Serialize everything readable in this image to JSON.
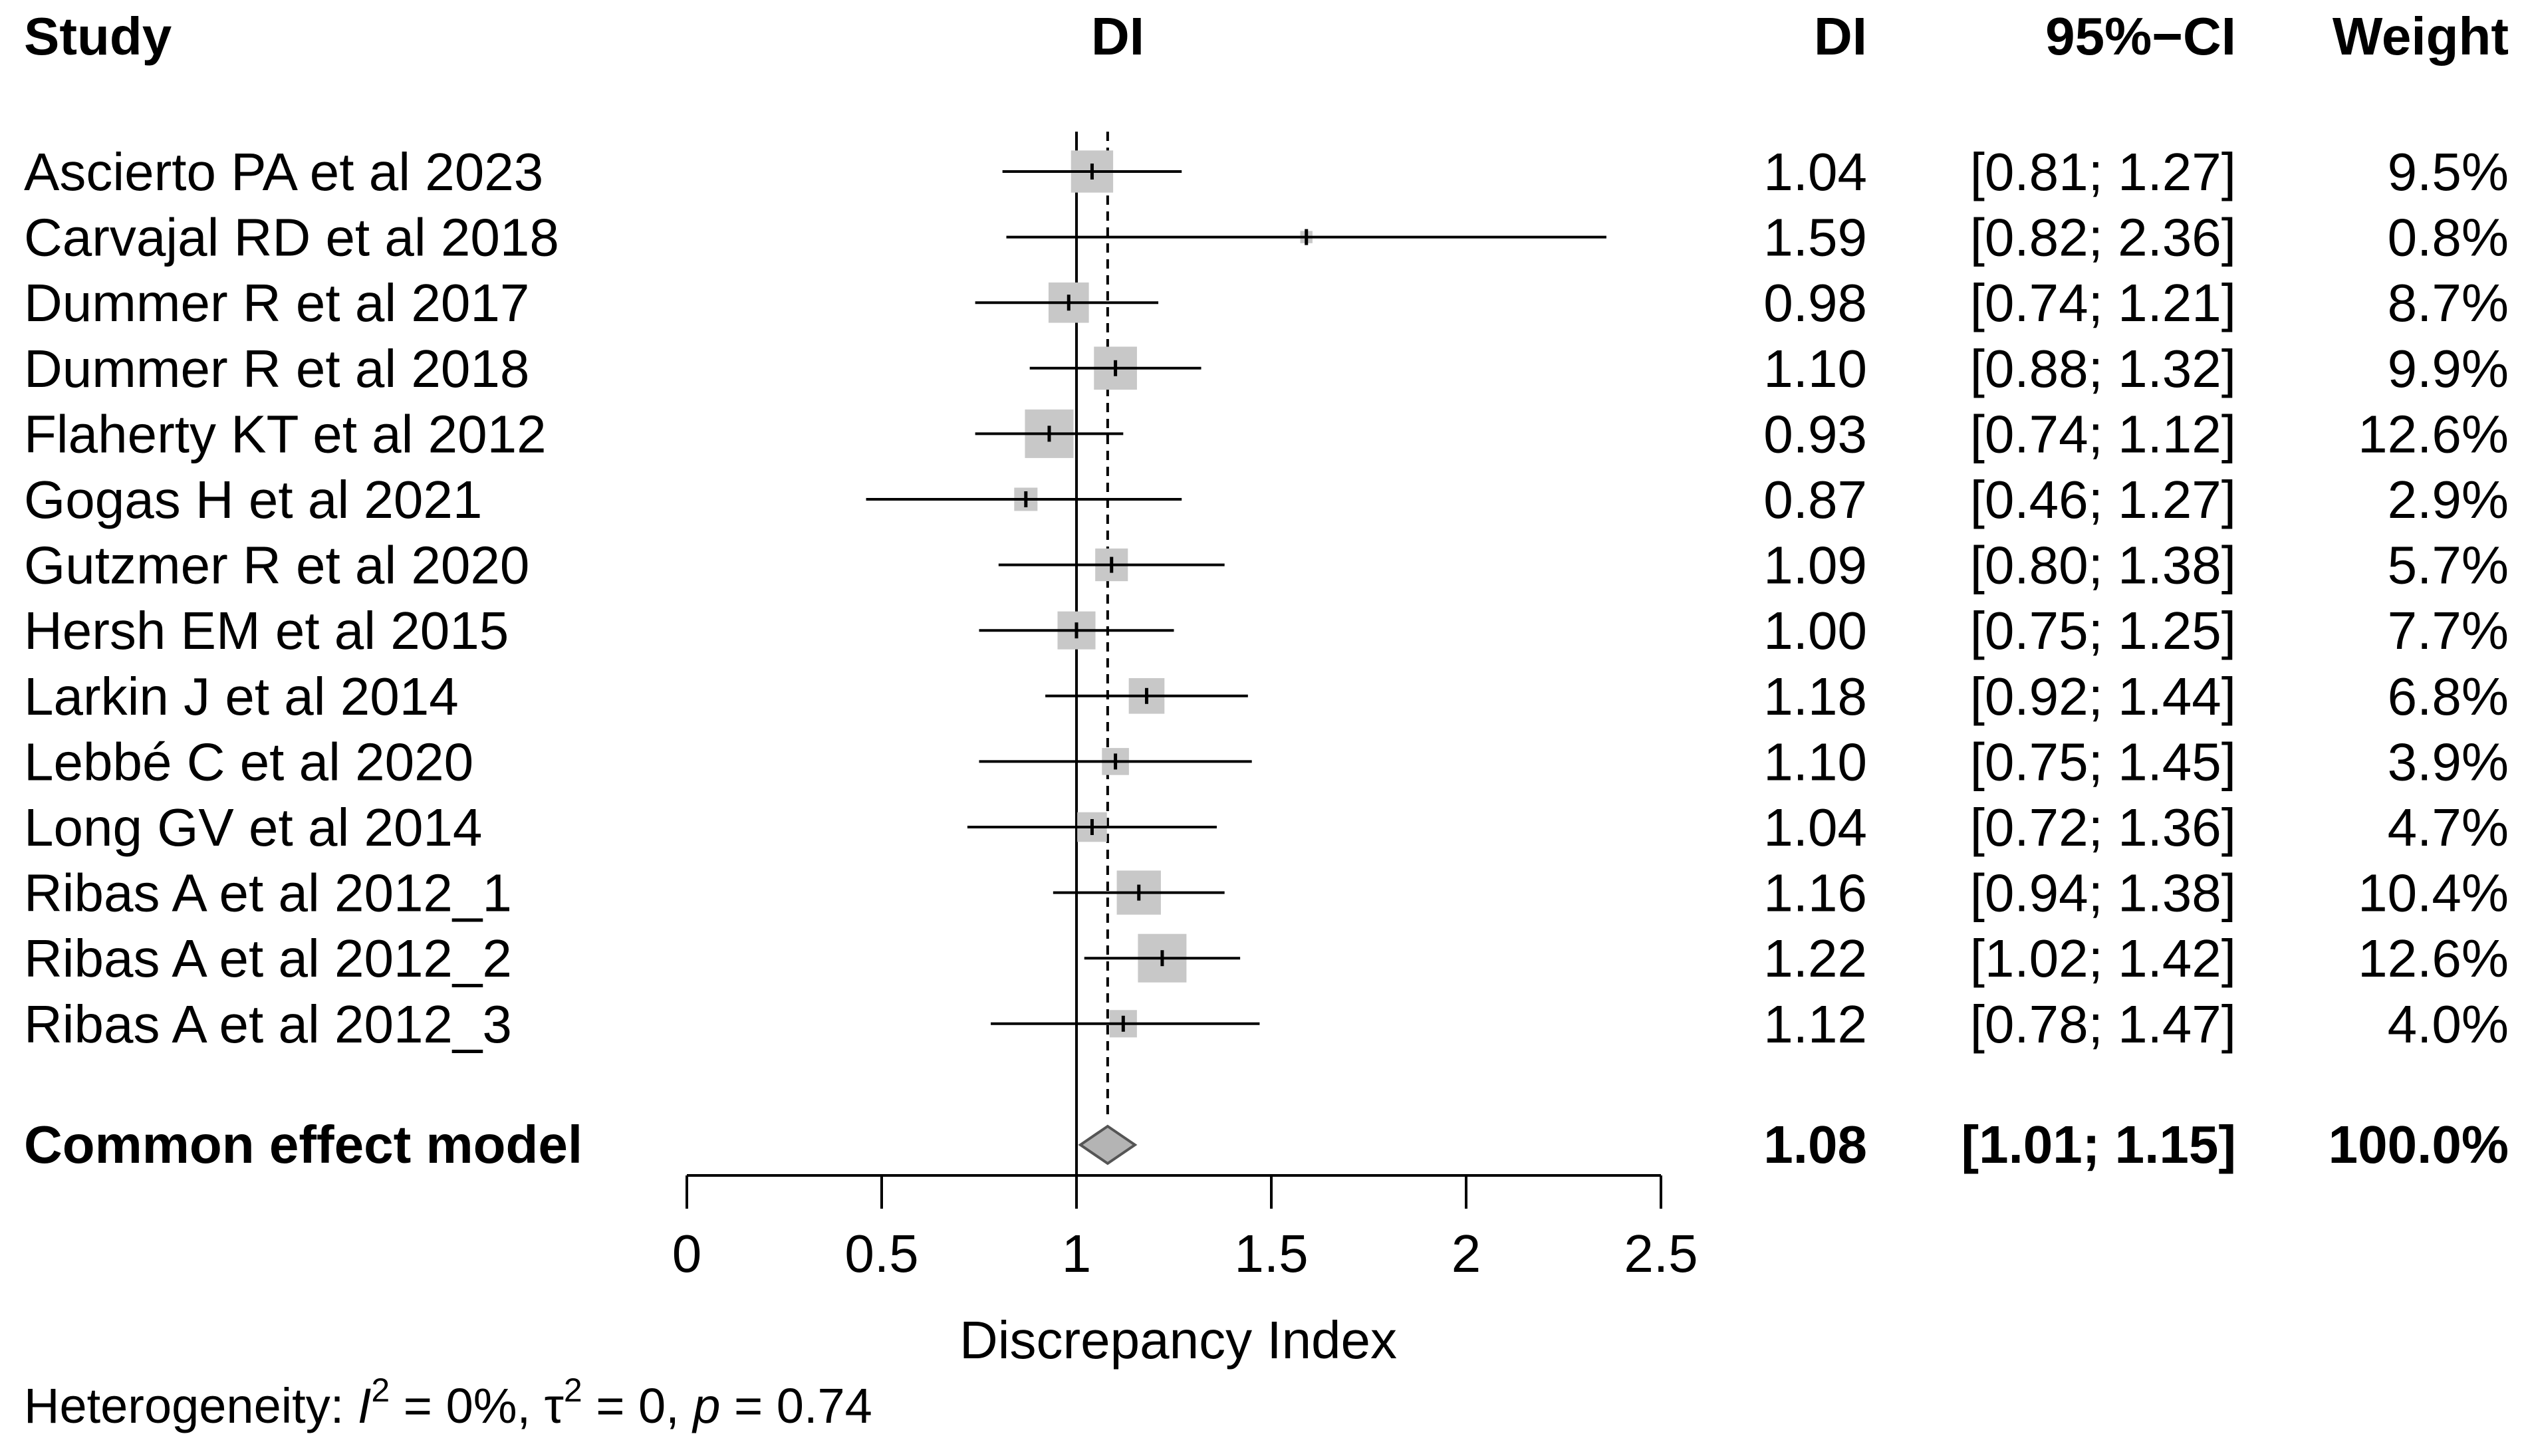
{
  "chart_data": {
    "type": "forest",
    "headers": {
      "study": "Study",
      "plot": "DI",
      "effect": "DI",
      "ci": "95%−CI",
      "weight": "Weight"
    },
    "studies": [
      {
        "study": "Ascierto PA et al 2023",
        "di": 1.04,
        "lower": 0.81,
        "upper": 1.27,
        "weight": 9.5,
        "di_text": "1.04",
        "ci_text": "[0.81; 1.27]",
        "weight_text": "9.5%"
      },
      {
        "study": "Carvajal RD et al 2018",
        "di": 1.59,
        "lower": 0.82,
        "upper": 2.36,
        "weight": 0.8,
        "di_text": "1.59",
        "ci_text": "[0.82; 2.36]",
        "weight_text": "0.8%"
      },
      {
        "study": "Dummer R et al 2017",
        "di": 0.98,
        "lower": 0.74,
        "upper": 1.21,
        "weight": 8.7,
        "di_text": "0.98",
        "ci_text": "[0.74; 1.21]",
        "weight_text": "8.7%"
      },
      {
        "study": "Dummer R et al 2018",
        "di": 1.1,
        "lower": 0.88,
        "upper": 1.32,
        "weight": 9.9,
        "di_text": "1.10",
        "ci_text": "[0.88; 1.32]",
        "weight_text": "9.9%"
      },
      {
        "study": "Flaherty KT et al 2012",
        "di": 0.93,
        "lower": 0.74,
        "upper": 1.12,
        "weight": 12.6,
        "di_text": "0.93",
        "ci_text": "[0.74; 1.12]",
        "weight_text": "12.6%"
      },
      {
        "study": "Gogas H et al 2021",
        "di": 0.87,
        "lower": 0.46,
        "upper": 1.27,
        "weight": 2.9,
        "di_text": "0.87",
        "ci_text": "[0.46; 1.27]",
        "weight_text": "2.9%"
      },
      {
        "study": "Gutzmer R et al 2020",
        "di": 1.09,
        "lower": 0.8,
        "upper": 1.38,
        "weight": 5.7,
        "di_text": "1.09",
        "ci_text": "[0.80; 1.38]",
        "weight_text": "5.7%"
      },
      {
        "study": "Hersh EM et al 2015",
        "di": 1.0,
        "lower": 0.75,
        "upper": 1.25,
        "weight": 7.7,
        "di_text": "1.00",
        "ci_text": "[0.75; 1.25]",
        "weight_text": "7.7%"
      },
      {
        "study": "Larkin J et al 2014",
        "di": 1.18,
        "lower": 0.92,
        "upper": 1.44,
        "weight": 6.8,
        "di_text": "1.18",
        "ci_text": "[0.92; 1.44]",
        "weight_text": "6.8%"
      },
      {
        "study": "Lebbé C et al 2020",
        "di": 1.1,
        "lower": 0.75,
        "upper": 1.45,
        "weight": 3.9,
        "di_text": "1.10",
        "ci_text": "[0.75; 1.45]",
        "weight_text": "3.9%"
      },
      {
        "study": "Long GV et al 2014",
        "di": 1.04,
        "lower": 0.72,
        "upper": 1.36,
        "weight": 4.7,
        "di_text": "1.04",
        "ci_text": "[0.72; 1.36]",
        "weight_text": "4.7%"
      },
      {
        "study": "Ribas A et al 2012_1",
        "di": 1.16,
        "lower": 0.94,
        "upper": 1.38,
        "weight": 10.4,
        "di_text": "1.16",
        "ci_text": "[0.94; 1.38]",
        "weight_text": "10.4%"
      },
      {
        "study": "Ribas A et al 2012_2",
        "di": 1.22,
        "lower": 1.02,
        "upper": 1.42,
        "weight": 12.6,
        "di_text": "1.22",
        "ci_text": "[1.02; 1.42]",
        "weight_text": "12.6%"
      },
      {
        "study": "Ribas A et al 2012_3",
        "di": 1.12,
        "lower": 0.78,
        "upper": 1.47,
        "weight": 4.0,
        "di_text": "1.12",
        "ci_text": "[0.78; 1.47]",
        "weight_text": "4.0%"
      }
    ],
    "pooled": {
      "label": "Common effect model",
      "di": 1.08,
      "lower": 1.01,
      "upper": 1.15,
      "di_text": "1.08",
      "ci_text": "[1.01; 1.15]",
      "weight_text": "100.0%"
    },
    "x_axis": {
      "label": "Discrepancy Index",
      "range": [
        0,
        2.5
      ],
      "ticks": [
        0,
        0.5,
        1,
        1.5,
        2,
        2.5
      ],
      "tick_labels": [
        "0",
        "0.5",
        "1",
        "1.5",
        "2",
        "2.5"
      ],
      "reference_line": 1
    },
    "heterogeneity": {
      "prefix": "Heterogeneity: ",
      "i2_symbol": "I",
      "i2_value": " = 0%, ",
      "tau_symbol": "τ",
      "tau_value": " = 0, ",
      "p_symbol": "p",
      "p_value": " = 0.74"
    },
    "colors": {
      "box_fill": "#c8c8c8",
      "diamond_fill": "#b4b4b4",
      "line": "#000000"
    }
  }
}
